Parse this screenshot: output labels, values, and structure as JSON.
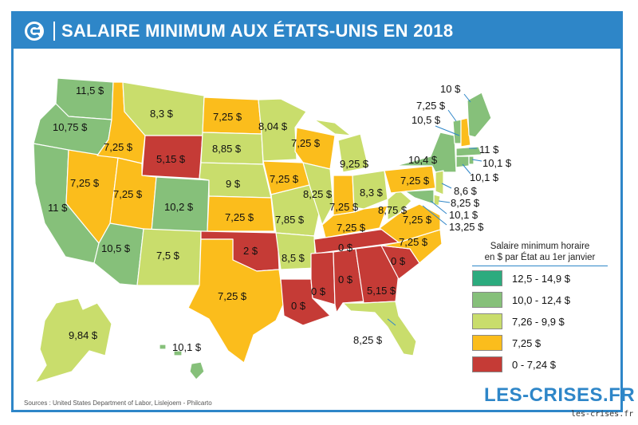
{
  "title": "SALAIRE MINIMUM AUX ÉTATS-UNIS EN 2018",
  "legend": {
    "title_line1": "Salaire minimum horaire",
    "title_line2": "en $ par État au 1er janvier",
    "items": [
      {
        "label": "12,5 - 14,9 $",
        "color": "#2cab7e"
      },
      {
        "label": "10,0 - 12,4 $",
        "color": "#86c07a"
      },
      {
        "label": "7,26 - 9,9 $",
        "color": "#c9dd6c"
      },
      {
        "label": "7,25 $",
        "color": "#fbbd1c"
      },
      {
        "label": "0 - 7,24 $",
        "color": "#c53b36"
      }
    ]
  },
  "states": {
    "WA": "11,5 $",
    "OR": "10,75 $",
    "CA": "11 $",
    "NV": "7,25 $",
    "ID": "7,25 $",
    "MT": "8,3 $",
    "WY": "5,15 $",
    "UT": "7,25 $",
    "AZ": "10,5 $",
    "CO": "10,2 $",
    "NM": "7,5 $",
    "ND": "7,25 $",
    "SD": "8,85 $",
    "NE": "9 $",
    "KS": "7,25 $",
    "OK": "2 $",
    "TX": "7,25 $",
    "MN": "8,04 $",
    "IA": "7,25 $",
    "MO": "7,85 $",
    "AR": "8,5 $",
    "LA": "0 $",
    "WI": "7,25 $",
    "IL": "8,25 $",
    "MS": "0 $",
    "MI": "9,25 $",
    "IN": "7,25 $",
    "KY": "7,25 $",
    "TN": "0 $",
    "AL": "0 $",
    "OH": "8,3 $",
    "WV": "8,75 $",
    "VA": "7,25 $",
    "NC": "7,25 $",
    "SC": "0 $",
    "GA": "5,15 $",
    "FL": "8,25 $",
    "PA": "7,25 $",
    "NY": "10,4 $",
    "VT": "10,5 $",
    "ME": "10 $",
    "NH": "7,25 $",
    "MA": "11 $",
    "RI": "10,1 $",
    "CT": "10,1 $",
    "NJ": "8,6 $",
    "DE": "8,25 $",
    "MD": "10,1 $",
    "DC": "13,25 $",
    "AK": "9,84 $",
    "HI": "10,1 $"
  },
  "sources": "Sources : United States Department of Labor, Lislejoem - Philcarto",
  "brand": "LES-CRISES.FR",
  "site": "les-crises.fr"
}
